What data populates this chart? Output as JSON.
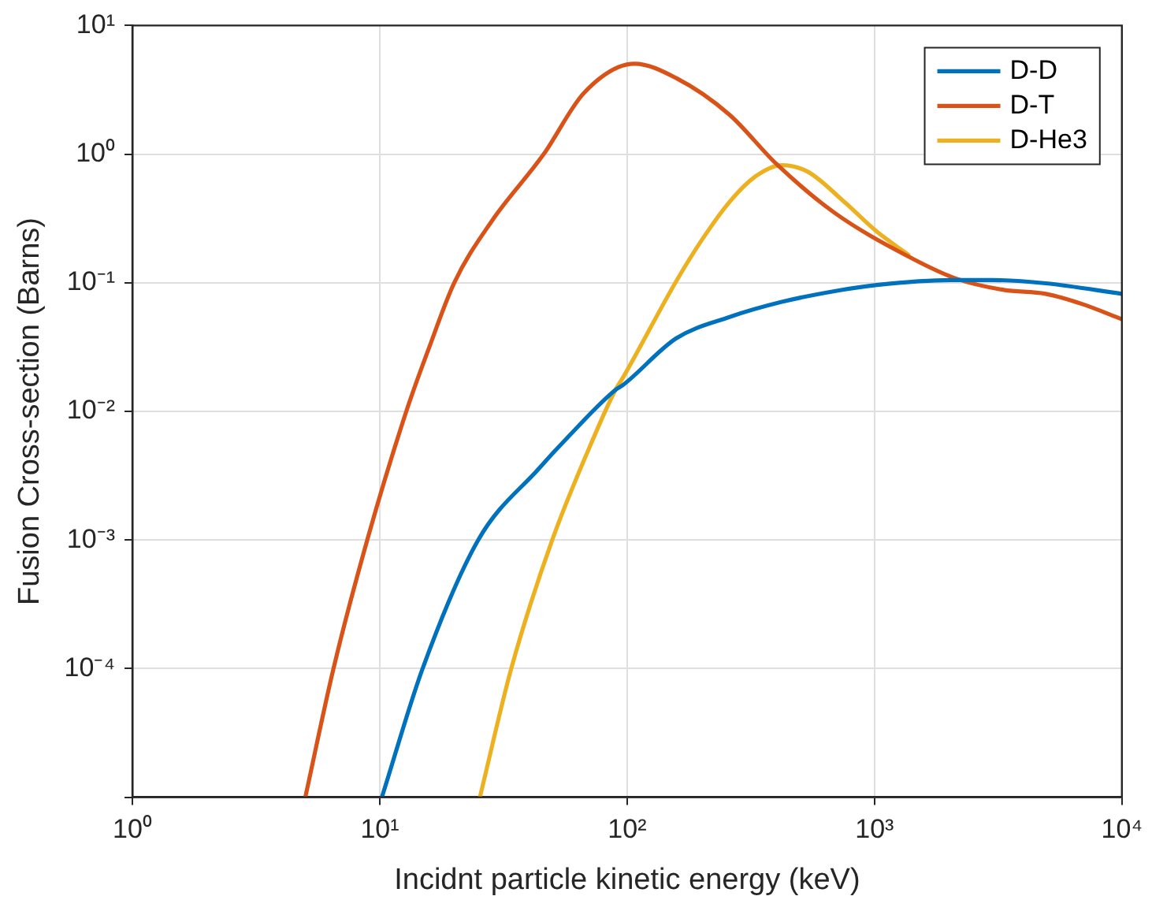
{
  "chart_data": {
    "type": "line",
    "xlabel": "Incidnt particle kinetic energy (keV)",
    "ylabel": "Fusion Cross-section (Barns)",
    "log": "xy",
    "grid": true,
    "legend": "top right",
    "marker": "none",
    "line_style": "solid",
    "xlim": [
      1,
      10000
    ],
    "ylim": [
      1e-05,
      10
    ],
    "xticks": [
      {
        "value": 1,
        "label": "10⁰"
      },
      {
        "value": 10,
        "label": "10¹"
      },
      {
        "value": 100,
        "label": "10²"
      },
      {
        "value": 1000,
        "label": "10³"
      },
      {
        "value": 10000,
        "label": "10⁴"
      }
    ],
    "yticks": [
      {
        "value": 1e-05,
        "label": null
      },
      {
        "value": 0.0001,
        "label": "10⁻⁴"
      },
      {
        "value": 0.001,
        "label": "10⁻³"
      },
      {
        "value": 0.01,
        "label": "10⁻²"
      },
      {
        "value": 0.1,
        "label": "10⁻¹"
      },
      {
        "value": 1,
        "label": "10⁰"
      },
      {
        "value": 10,
        "label": "10¹"
      }
    ],
    "series": [
      {
        "name": "D-D",
        "color": "#0072bd",
        "x": [
          10.2,
          14.9,
          25,
          44,
          57.6,
          89.7,
          96.5,
          158,
          258,
          422,
          689,
          1021,
          2033,
          3010,
          4920,
          10000
        ],
        "values": [
          1e-05,
          0.0001,
          0.001,
          0.0036,
          0.0063,
          0.0147,
          0.0161,
          0.037,
          0.054,
          0.071,
          0.086,
          0.096,
          0.105,
          0.105,
          0.099,
          0.082
        ]
      },
      {
        "name": "D-T",
        "color": "#d95319",
        "x": [
          5,
          6.5,
          8.9,
          12.8,
          15.7,
          20,
          28.3,
          46,
          67,
          107,
          158,
          259,
          401,
          689,
          1371,
          2130,
          3330,
          4920,
          6960,
          10000
        ],
        "values": [
          1e-05,
          0.0001,
          0.001,
          0.01,
          0.03,
          0.1,
          0.3,
          1,
          3,
          5.05,
          3.9,
          2.03,
          0.84,
          0.35,
          0.16,
          0.108,
          0.088,
          0.082,
          0.068,
          0.052
        ]
      },
      {
        "name": "D-He3",
        "color": "#edb120",
        "x": [
          25.4,
          34,
          49.8,
          73.6,
          89.7,
          96.5,
          158,
          202,
          258,
          330,
          422,
          537,
          760,
          1021,
          1371
        ],
        "values": [
          1e-05,
          0.0001,
          0.001,
          0.0064,
          0.0147,
          0.0185,
          0.103,
          0.22,
          0.42,
          0.67,
          0.82,
          0.73,
          0.42,
          0.25,
          0.165
        ]
      }
    ]
  }
}
